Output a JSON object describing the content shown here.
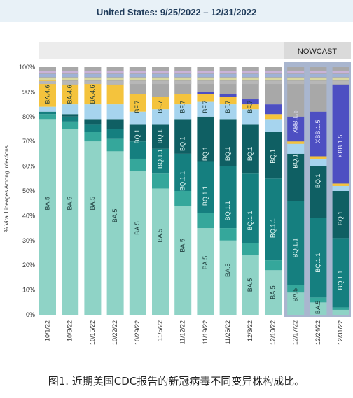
{
  "header": {
    "title": "United States: 9/25/2022 – 12/31/2022"
  },
  "nowcast_label": "NOWCAST",
  "caption": "图1. 近期美国CDC报告的新冠病毒不同变异株构成比。",
  "colors": {
    "BA.5": "#8fd3c6",
    "BA.5b": "#35a79b",
    "BQ.1.1": "#157f7f",
    "BQ.1": "#0f5f63",
    "BF.7": "#a6d4ee",
    "BA.4.6": "#f4c33d",
    "XBB.1.5": "#4d4fc2",
    "other": "#a8a8a8",
    "nowcast_bg": "#a9b6cf",
    "header_bg": "#e8f1f7"
  },
  "chart_data": {
    "type": "stacked bar",
    "title": "United States: 9/25/2022 – 12/31/2022",
    "ylabel": "% Viral Lineages Among Infections",
    "xlabel": "",
    "ylim": [
      0,
      100
    ],
    "yticks": [
      "0%",
      "10%",
      "20%",
      "30%",
      "40%",
      "50%",
      "60%",
      "70%",
      "80%",
      "90%",
      "100%"
    ],
    "categories": [
      "10/1/22",
      "10/8/22",
      "10/15/22",
      "10/22/22",
      "10/29/22",
      "11/5/22",
      "11/12/22",
      "11/19/22",
      "11/26/22",
      "12/3/22",
      "12/10/22",
      "12/17/22",
      "12/24/22",
      "12/31/22"
    ],
    "nowcast_from": "12/17/22",
    "series": [
      {
        "name": "BA.5",
        "values": [
          79,
          75,
          70,
          66,
          58,
          51,
          44,
          35,
          30,
          24,
          18,
          9,
          5,
          2
        ]
      },
      {
        "name": "",
        "values": [
          2,
          3,
          4,
          5,
          5,
          6,
          6,
          6,
          5,
          5,
          4,
          3,
          2,
          1
        ]
      },
      {
        "name": "BQ.1.1",
        "values": [
          1,
          2,
          3,
          4,
          7,
          10,
          15,
          21,
          25,
          28,
          33,
          34,
          32,
          28
        ]
      },
      {
        "name": "BQ.1",
        "values": [
          0,
          1,
          2,
          4,
          7,
          10,
          14,
          18,
          19,
          20,
          19,
          19,
          21,
          19
        ]
      },
      {
        "name": "BF.7",
        "values": [
          2,
          4,
          6,
          6,
          5,
          6,
          6,
          6,
          6,
          6,
          5,
          4,
          3,
          2
        ]
      },
      {
        "name": "BA.4.6",
        "values": [
          11,
          8,
          9,
          8,
          7,
          5,
          4,
          3,
          3,
          2,
          2,
          1,
          1,
          1
        ]
      },
      {
        "name": "XBB.1.5",
        "values": [
          0,
          0,
          0,
          0,
          0,
          0,
          0,
          1,
          1,
          2,
          4,
          10,
          18,
          40
        ]
      },
      {
        "name": "",
        "values": [
          5,
          7,
          6,
          7,
          11,
          12,
          11,
          10,
          11,
          13,
          15,
          20,
          18,
          7
        ]
      }
    ],
    "labels": [
      [
        [
          "BA.5",
          45
        ],
        [
          "BA.4.6",
          89
        ]
      ],
      [
        [
          "BA.5",
          45
        ],
        [
          "BA.4.6",
          89
        ]
      ],
      [
        [
          "BA.5",
          45
        ],
        [
          "BA.4.6",
          89
        ]
      ],
      [
        [
          "BA.5",
          40
        ]
      ],
      [
        [
          "BA.5",
          35
        ],
        [
          "BQ.1",
          72
        ],
        [
          "BF.7",
          84
        ]
      ],
      [
        [
          "BA.5",
          32
        ],
        [
          "BQ.1.1",
          63
        ],
        [
          "BQ.1",
          72
        ],
        [
          "BF.7",
          84
        ]
      ],
      [
        [
          "BA.5",
          28
        ],
        [
          "BQ.1.1",
          54
        ],
        [
          "BQ.1",
          69
        ],
        [
          "BF.7",
          84
        ]
      ],
      [
        [
          "BA.5",
          21
        ],
        [
          "BQ.1.1",
          48
        ],
        [
          "BQ.1",
          65
        ],
        [
          "BF.7",
          84
        ]
      ],
      [
        [
          "BA.5",
          18
        ],
        [
          "BQ.1.1",
          42
        ],
        [
          "BQ.1",
          65
        ],
        [
          "BF.7",
          84
        ]
      ],
      [
        [
          "BA.5",
          12
        ],
        [
          "BQ.1.1",
          38
        ],
        [
          "BQ.1",
          65
        ],
        [
          "BF.7",
          84
        ]
      ],
      [
        [
          "BA.5",
          9
        ],
        [
          "BQ.1.1",
          35
        ],
        [
          "BQ.1",
          64
        ]
      ],
      [
        [
          "BA.5",
          8
        ],
        [
          "BQ.1.1",
          27
        ],
        [
          "BQ.1",
          62
        ],
        [
          "XBB.1.5",
          78
        ]
      ],
      [
        [
          "BA.5",
          3
        ],
        [
          "BQ.1.1",
          21
        ],
        [
          "BQ.1",
          54
        ],
        [
          "XBB.1.5",
          74
        ]
      ],
      [
        [
          "BQ.1.1",
          14
        ],
        [
          "BQ.1",
          39
        ],
        [
          "XBB.1.5",
          68
        ]
      ]
    ]
  }
}
